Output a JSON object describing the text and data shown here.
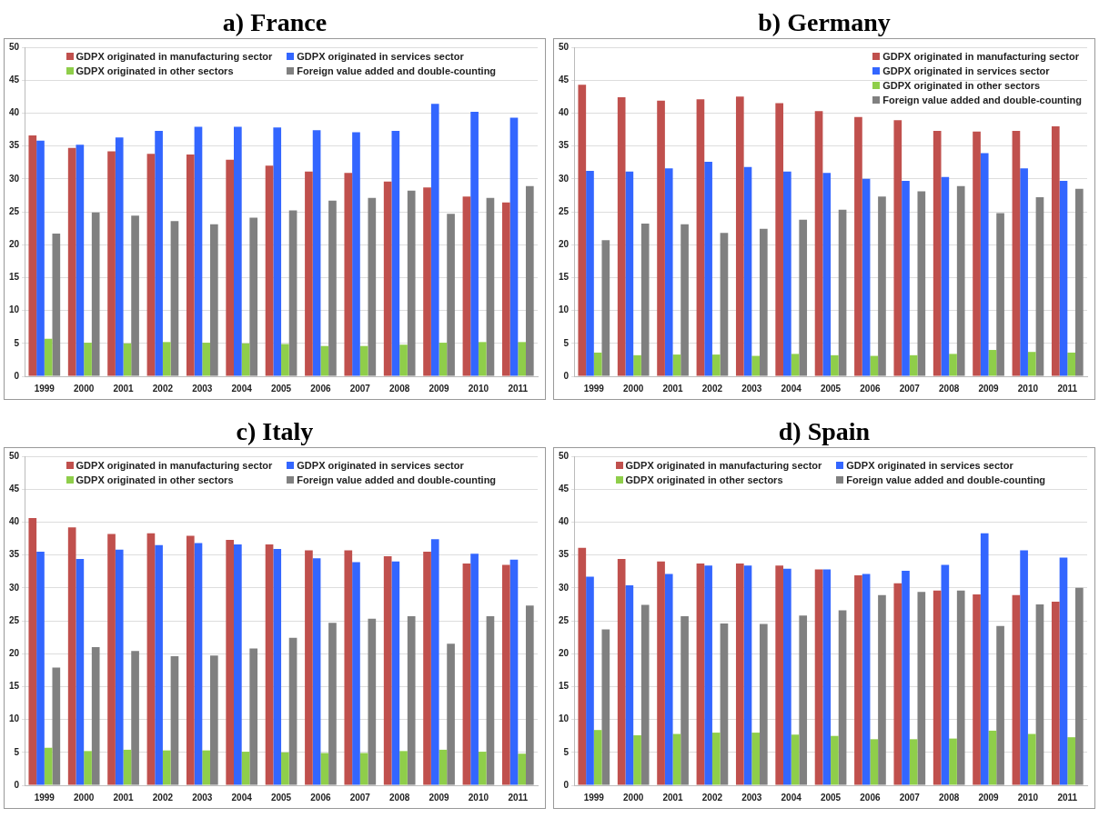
{
  "chart_data": [
    {
      "type": "bar",
      "title": "a) France",
      "categories": [
        "1999",
        "2000",
        "2001",
        "2002",
        "2003",
        "2004",
        "2005",
        "2006",
        "2007",
        "2008",
        "2009",
        "2010",
        "2011"
      ],
      "ylim": [
        0,
        50
      ],
      "yticks": [
        0,
        5,
        10,
        15,
        20,
        25,
        30,
        35,
        40,
        45,
        50
      ],
      "grid": "y",
      "legend": "top",
      "series": [
        {
          "name": "GDPX originated in manufacturing sector",
          "color": "#c0504d",
          "values": [
            36.6,
            34.7,
            34.2,
            33.8,
            33.7,
            32.9,
            32.0,
            31.1,
            30.9,
            29.6,
            28.7,
            27.3,
            26.4
          ]
        },
        {
          "name": "GDPX originated in services sector",
          "color": "#3366ff",
          "values": [
            35.8,
            35.2,
            36.3,
            37.3,
            37.9,
            37.9,
            37.8,
            37.4,
            37.1,
            37.3,
            41.4,
            40.2,
            39.3
          ]
        },
        {
          "name": "GDPX originated in other sectors",
          "color": "#8fce4a",
          "values": [
            5.7,
            5.1,
            5.0,
            5.2,
            5.1,
            5.0,
            4.9,
            4.6,
            4.6,
            4.8,
            5.1,
            5.2,
            5.2
          ]
        },
        {
          "name": "Foreign value added and double-counting",
          "color": "#808080",
          "values": [
            21.7,
            24.9,
            24.4,
            23.6,
            23.1,
            24.1,
            25.2,
            26.7,
            27.1,
            28.2,
            24.7,
            27.1,
            28.9
          ]
        }
      ]
    },
    {
      "type": "bar",
      "title": "b) Germany",
      "categories": [
        "1999",
        "2000",
        "2001",
        "2002",
        "2003",
        "2004",
        "2005",
        "2006",
        "2007",
        "2008",
        "2009",
        "2010",
        "2011"
      ],
      "ylim": [
        0,
        50
      ],
      "yticks": [
        0,
        5,
        10,
        15,
        20,
        25,
        30,
        35,
        40,
        45,
        50
      ],
      "grid": "y",
      "legend": "top right",
      "series": [
        {
          "name": "GDPX originated in manufacturing sector",
          "color": "#c0504d",
          "values": [
            44.3,
            42.4,
            41.9,
            42.1,
            42.5,
            41.5,
            40.3,
            39.4,
            38.9,
            37.3,
            37.2,
            37.3,
            38.0
          ]
        },
        {
          "name": "GDPX originated in services sector",
          "color": "#3366ff",
          "values": [
            31.2,
            31.1,
            31.6,
            32.6,
            31.8,
            31.1,
            30.9,
            30.0,
            29.7,
            30.3,
            33.9,
            31.6,
            29.7
          ]
        },
        {
          "name": "GDPX originated in other sectors",
          "color": "#8fce4a",
          "values": [
            3.6,
            3.2,
            3.3,
            3.3,
            3.1,
            3.4,
            3.2,
            3.1,
            3.2,
            3.4,
            4.0,
            3.7,
            3.6
          ]
        },
        {
          "name": "Foreign value added and double-counting",
          "color": "#808080",
          "values": [
            20.7,
            23.2,
            23.1,
            21.8,
            22.4,
            23.8,
            25.3,
            27.3,
            28.1,
            28.9,
            24.8,
            27.2,
            28.5
          ]
        }
      ]
    },
    {
      "type": "bar",
      "title": "c) Italy",
      "categories": [
        "1999",
        "2000",
        "2001",
        "2002",
        "2003",
        "2004",
        "2005",
        "2006",
        "2007",
        "2008",
        "2009",
        "2010",
        "2011"
      ],
      "ylim": [
        0,
        50
      ],
      "yticks": [
        0,
        5,
        10,
        15,
        20,
        25,
        30,
        35,
        40,
        45,
        50
      ],
      "grid": "y",
      "legend": "top",
      "series": [
        {
          "name": "GDPX originated in manufacturing sector",
          "color": "#c0504d",
          "values": [
            40.6,
            39.2,
            38.2,
            38.3,
            37.9,
            37.3,
            36.6,
            35.7,
            35.7,
            34.8,
            35.5,
            33.7,
            33.5
          ]
        },
        {
          "name": "GDPX originated in services sector",
          "color": "#3366ff",
          "values": [
            35.5,
            34.4,
            35.8,
            36.5,
            36.8,
            36.6,
            35.9,
            34.5,
            33.9,
            34.0,
            37.4,
            35.2,
            34.3
          ]
        },
        {
          "name": "GDPX originated in other sectors",
          "color": "#8fce4a",
          "values": [
            5.7,
            5.2,
            5.4,
            5.3,
            5.3,
            5.1,
            5.0,
            4.9,
            4.9,
            5.2,
            5.4,
            5.1,
            4.8
          ]
        },
        {
          "name": "Foreign value added and double-counting",
          "color": "#808080",
          "values": [
            17.9,
            21.0,
            20.4,
            19.6,
            19.7,
            20.8,
            22.4,
            24.7,
            25.3,
            25.7,
            21.5,
            25.7,
            27.3
          ]
        }
      ]
    },
    {
      "type": "bar",
      "title": "d) Spain",
      "categories": [
        "1999",
        "2000",
        "2001",
        "2002",
        "2003",
        "2004",
        "2005",
        "2006",
        "2007",
        "2008",
        "2009",
        "2010",
        "2011"
      ],
      "ylim": [
        0,
        50
      ],
      "yticks": [
        0,
        5,
        10,
        15,
        20,
        25,
        30,
        35,
        40,
        45,
        50
      ],
      "grid": "y",
      "legend": "top",
      "series": [
        {
          "name": "GDPX originated in manufacturing sector",
          "color": "#c0504d",
          "values": [
            36.1,
            34.4,
            34.0,
            33.7,
            33.7,
            33.4,
            32.8,
            31.9,
            30.7,
            29.6,
            29.0,
            28.9,
            27.9
          ]
        },
        {
          "name": "GDPX originated in services sector",
          "color": "#3366ff",
          "values": [
            31.7,
            30.4,
            32.1,
            33.4,
            33.4,
            32.9,
            32.8,
            32.1,
            32.6,
            33.5,
            38.3,
            35.7,
            34.6
          ]
        },
        {
          "name": "GDPX originated in other sectors",
          "color": "#8fce4a",
          "values": [
            8.4,
            7.6,
            7.8,
            8.0,
            8.0,
            7.7,
            7.5,
            7.0,
            7.0,
            7.1,
            8.3,
            7.8,
            7.3
          ]
        },
        {
          "name": "Foreign value added and double-counting",
          "color": "#808080",
          "values": [
            23.7,
            27.4,
            25.7,
            24.6,
            24.5,
            25.8,
            26.6,
            28.9,
            29.4,
            29.6,
            24.2,
            27.5,
            30.0
          ]
        }
      ]
    }
  ]
}
